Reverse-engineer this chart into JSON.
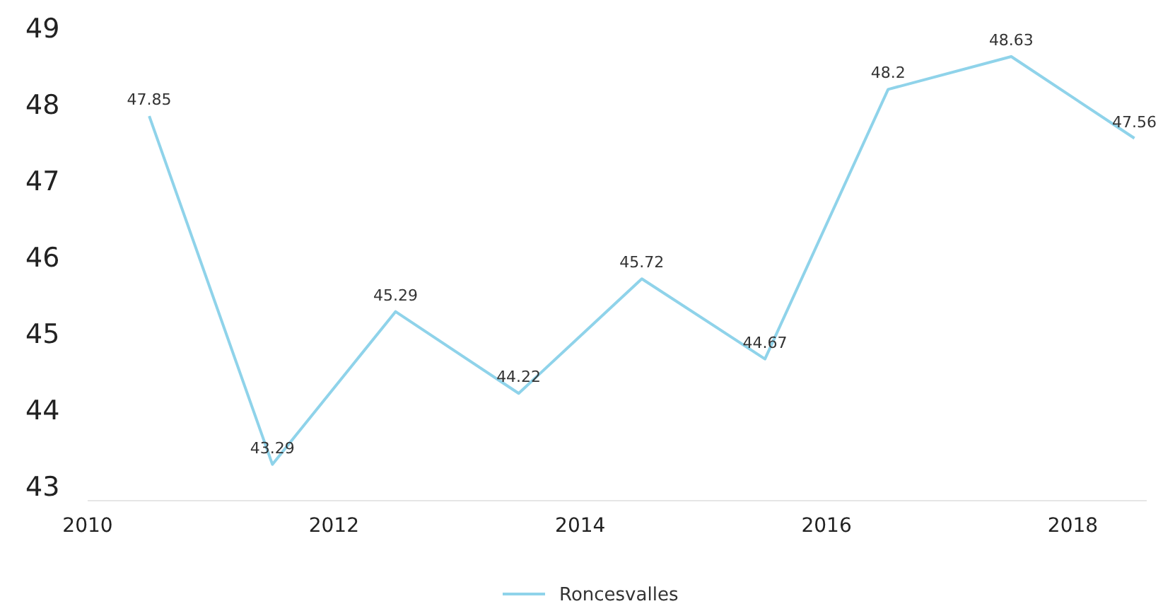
{
  "chart_data": {
    "type": "line",
    "x": [
      2010.5,
      2011.5,
      2012.5,
      2013.5,
      2014.5,
      2015.5,
      2016.5,
      2017.5,
      2018.5
    ],
    "series": [
      {
        "name": "Roncesvalles",
        "color": "#8fd3ea",
        "values": [
          47.85,
          43.29,
          45.29,
          44.22,
          45.72,
          44.67,
          48.2,
          48.63,
          47.56
        ]
      }
    ],
    "xlim": [
      2010,
      2018.6
    ],
    "xticks": [
      2010,
      2012,
      2014,
      2016,
      2018
    ],
    "ylim": [
      43,
      49
    ],
    "yticks": [
      43,
      44,
      45,
      46,
      47,
      48,
      49
    ],
    "data_labels": true,
    "legend": "bottom",
    "grid": false,
    "marker": "none",
    "line_style": "solid"
  }
}
